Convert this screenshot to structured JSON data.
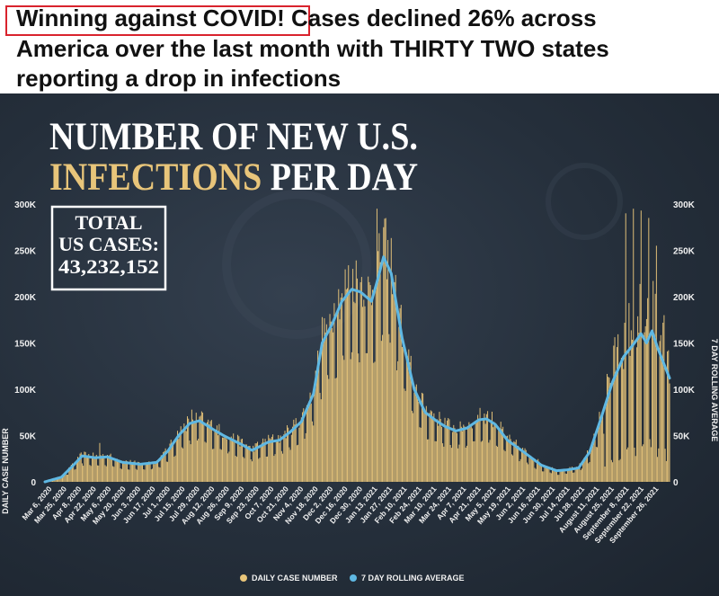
{
  "headline": {
    "highlight": "Winning against COVID!",
    "line1_rest": " Cases declined 26% across",
    "line2": "America over the last month with THIRTY TWO states",
    "line3": "reporting a drop in infections"
  },
  "colors": {
    "bar": "#e8c57a",
    "line": "#5fb8e3",
    "accent_title": "#e8c57a",
    "background": "#252f3b"
  },
  "chart_data": {
    "type": "bar",
    "title_part1": "NUMBER OF NEW U.S.",
    "title_accent": "INFECTIONS",
    "title_part2": " PER DAY",
    "total_box": {
      "line1": "TOTAL",
      "line2": "US CASES:",
      "value": "43,232,152"
    },
    "ylabel_left": "DAILY CASE NUMBER",
    "ylabel_right": "7 DAY ROLLING AVERAGE",
    "ylim": [
      0,
      300000
    ],
    "yticks": [
      "0",
      "50K",
      "100K",
      "150K",
      "200K",
      "250K",
      "300K"
    ],
    "start_date": "2020-03-05",
    "end_date": "2021-09-26",
    "xticks": [
      "Mar 6, 2020",
      "Mar 25, 2020",
      "Apr 8, 2020",
      "Apr 22, 2020",
      "May 6, 2020",
      "May 20, 2020",
      "Jun 3, 2020",
      "Jun 17, 2020",
      "Jul 1, 2020",
      "Jul 15, 2020",
      "Jul 29, 2020",
      "Aug 12, 2020",
      "Aug 26, 2020",
      "Sep 9, 2020",
      "Sep 23, 2020",
      "Oct 7, 2020",
      "Oct 21, 2020",
      "Nov 4, 2020",
      "Nov 18, 2020",
      "Dec 2, 2020",
      "Dec 16, 2020",
      "Dec 30, 2020",
      "Jan 13, 2021",
      "Jan 27, 2021",
      "Feb 10, 2021",
      "Feb 24, 2021",
      "Mar 10, 2021",
      "Mar 24, 2021",
      "Apr 7, 2021",
      "Apr 21, 2021",
      "May 5, 2021",
      "May 19, 2021",
      "Jun 2, 2021",
      "Jun 16, 2021",
      "Jun 30, 2021",
      "Jul 14, 2021",
      "Jul 28, 2021",
      "August 11, 2021",
      "August 25, 2021",
      "September 8, 2021",
      "September 22, 2021",
      "September 26, 2021"
    ],
    "legend": [
      "DAILY CASE NUMBER",
      "7 DAY ROLLING AVERAGE"
    ],
    "legend_position": "bottom-center",
    "rolling_avg": {
      "dates": [
        "2020-03-05",
        "2020-03-20",
        "2020-03-31",
        "2020-04-08",
        "2020-04-20",
        "2020-05-01",
        "2020-05-15",
        "2020-05-31",
        "2020-06-15",
        "2020-06-25",
        "2020-07-05",
        "2020-07-15",
        "2020-07-24",
        "2020-08-05",
        "2020-08-15",
        "2020-09-01",
        "2020-09-10",
        "2020-09-25",
        "2020-10-05",
        "2020-10-15",
        "2020-10-25",
        "2020-11-05",
        "2020-11-13",
        "2020-11-22",
        "2020-12-01",
        "2020-12-10",
        "2020-12-18",
        "2020-12-28",
        "2021-01-03",
        "2021-01-08",
        "2021-01-15",
        "2021-01-25",
        "2021-02-05",
        "2021-02-15",
        "2021-02-25",
        "2021-03-05",
        "2021-03-15",
        "2021-03-25",
        "2021-04-05",
        "2021-04-12",
        "2021-04-20",
        "2021-05-01",
        "2021-05-15",
        "2021-06-01",
        "2021-06-15",
        "2021-06-25",
        "2021-07-05",
        "2021-07-15",
        "2021-07-25",
        "2021-08-05",
        "2021-08-15",
        "2021-08-25",
        "2021-08-31",
        "2021-09-05",
        "2021-09-10",
        "2021-09-15",
        "2021-09-20",
        "2021-09-26"
      ],
      "values": [
        0,
        5000,
        18000,
        28000,
        26000,
        27000,
        21000,
        19000,
        21000,
        33000,
        50000,
        63000,
        66000,
        57000,
        50000,
        40000,
        34000,
        43000,
        45000,
        54000,
        65000,
        95000,
        150000,
        170000,
        195000,
        208000,
        205000,
        195000,
        220000,
        243000,
        225000,
        155000,
        100000,
        75000,
        66000,
        60000,
        55000,
        58000,
        67000,
        68000,
        62000,
        45000,
        33000,
        18000,
        12000,
        13000,
        15000,
        32000,
        67000,
        108000,
        135000,
        150000,
        160000,
        150000,
        163000,
        145000,
        130000,
        112000
      ]
    },
    "daily_peaks": {
      "dates": [
        "2020-04-24",
        "2020-07-17",
        "2020-11-07",
        "2020-12-11",
        "2021-01-02",
        "2021-01-08",
        "2021-08-17",
        "2021-08-24",
        "2021-08-31",
        "2021-09-07",
        "2021-09-14",
        "2021-09-21"
      ],
      "values": [
        42000,
        78000,
        120000,
        230000,
        295000,
        275000,
        290000,
        295000,
        293000,
        285000,
        255000,
        180000
      ]
    }
  }
}
